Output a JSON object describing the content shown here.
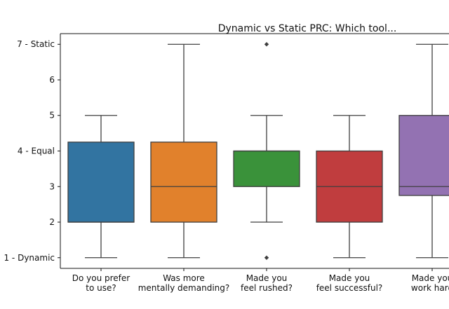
{
  "chart_data": {
    "type": "box",
    "title": "Dynamic vs Static PRC: Which tool...",
    "xlabel": "",
    "ylabel": "",
    "ylim": [
      0.7,
      7.3
    ],
    "yticks": [
      {
        "value": 1,
        "label": "1 - Dynamic"
      },
      {
        "value": 2,
        "label": "2"
      },
      {
        "value": 3,
        "label": "3"
      },
      {
        "value": 4,
        "label": "4 - Equal"
      },
      {
        "value": 5,
        "label": "5"
      },
      {
        "value": 6,
        "label": "6"
      },
      {
        "value": 7,
        "label": "7 - Static"
      }
    ],
    "grid": false,
    "boxes": [
      {
        "category_lines": [
          "Do you prefer",
          "to use?"
        ],
        "color": "#3274a1",
        "whisker_low": 1,
        "q1": 2,
        "median": 2,
        "q3": 4.25,
        "whisker_high": 5,
        "outliers": []
      },
      {
        "category_lines": [
          "Was more",
          "mentally demanding?"
        ],
        "color": "#e1812c",
        "whisker_low": 1,
        "q1": 2,
        "median": 3,
        "q3": 4.25,
        "whisker_high": 7,
        "outliers": []
      },
      {
        "category_lines": [
          "Made you",
          "feel rushed?"
        ],
        "color": "#3a923a",
        "whisker_low": 2,
        "q1": 3,
        "median": 4,
        "q3": 4,
        "whisker_high": 5,
        "outliers": [
          1,
          7
        ]
      },
      {
        "category_lines": [
          "Made you",
          "feel successful?"
        ],
        "color": "#c03d3e",
        "whisker_low": 1,
        "q1": 2,
        "median": 3,
        "q3": 4,
        "whisker_high": 5,
        "outliers": []
      },
      {
        "category_lines": [
          "Made you",
          "work hard"
        ],
        "color": "#9372b2",
        "whisker_low": 1,
        "q1": 2.75,
        "median": 3,
        "q3": 5,
        "whisker_high": 7,
        "outliers": []
      }
    ]
  }
}
